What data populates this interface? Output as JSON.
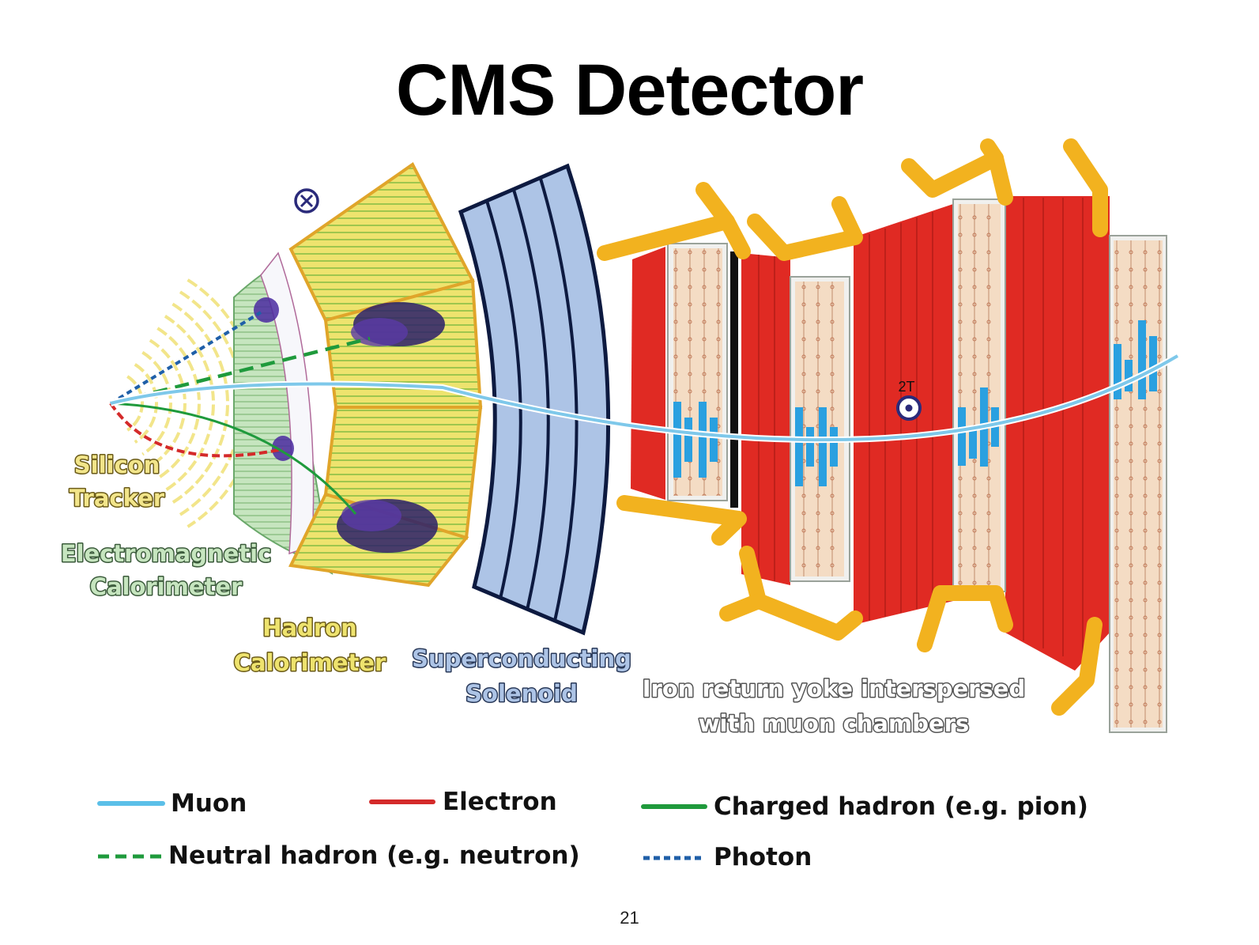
{
  "title": "CMS Detector",
  "page_number": "21",
  "field_label": "2T",
  "labels": {
    "tracker_line1": "Silicon",
    "tracker_line2": "Tracker",
    "ecal_line1": "Electromagnetic",
    "ecal_line2": "Calorimeter",
    "hcal_line1": "Hadron",
    "hcal_line2": "Calorimeter",
    "solenoid_line1": "Superconducting",
    "solenoid_line2": "Solenoid",
    "yoke_line1": "Iron return yoke interspersed",
    "yoke_line2": "with muon chambers"
  },
  "legend": {
    "muon": "Muon",
    "electron": "Electron",
    "charged_hadron": "Charged hadron (e.g. pion)",
    "neutral_hadron": "Neutral hadron (e.g. neutron)",
    "photon": "Photon"
  },
  "colors": {
    "muon": "#5bbfe8",
    "electron": "#d42a2a",
    "charged_hadron": "#1f9a3c",
    "neutral_hadron": "#1f9a3c",
    "photon": "#1f5fa8",
    "tracker": "#f2e58a",
    "ecal": "#bfe0b8",
    "hcal": "#eee36e",
    "hcal_border": "#e0a52a",
    "solenoid": "#adc4e6",
    "solenoid_border": "#0d1a40",
    "yoke": "#e02a23",
    "yoke_struct": "#f2b21f",
    "muon_chamber": "#f4dcc4",
    "muon_hits": "#2aa0e0"
  },
  "icons": {
    "b_field_into_page": "circle-cross-icon",
    "b_field_out_of_page": "circle-dot-icon"
  }
}
